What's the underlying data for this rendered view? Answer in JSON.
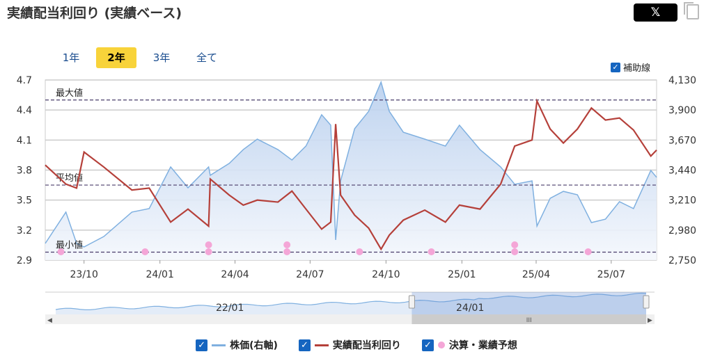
{
  "title": "実績配当利回り (実績ベース)",
  "share": {
    "x_label": "𝕏",
    "icons": [
      "x-share-icon",
      "copy-icon"
    ]
  },
  "ranges": [
    {
      "label": "1年",
      "active": false
    },
    {
      "label": "2年",
      "active": true
    },
    {
      "label": "3年",
      "active": false
    },
    {
      "label": "全て",
      "active": false
    }
  ],
  "aux_line": {
    "label": "補助線",
    "checked": true
  },
  "colors": {
    "price": "#7fb0e0",
    "yield": "#b5403a",
    "event": "#f4a6d7",
    "ref": "#4a3c6a",
    "accent": "#f8d33a"
  },
  "chart_data": {
    "type": "line",
    "left_axis": {
      "ylim": [
        2.9,
        4.7
      ],
      "ticks": [
        "2.9",
        "3.2",
        "3.5",
        "3.8",
        "4.1",
        "4.4",
        "4.7"
      ]
    },
    "right_axis": {
      "ylim": [
        2750,
        4130
      ],
      "ticks": [
        "2,750",
        "2,980",
        "3,210",
        "3,440",
        "3,670",
        "3,900",
        "4,130"
      ]
    },
    "x_ticks": [
      {
        "label": "23/10",
        "date": "2023-10-01"
      },
      {
        "label": "24/01",
        "date": "2024-01-01"
      },
      {
        "label": "24/04",
        "date": "2024-04-01"
      },
      {
        "label": "24/07",
        "date": "2024-07-01"
      },
      {
        "label": "24/10",
        "date": "2024-10-01"
      },
      {
        "label": "25/01",
        "date": "2025-01-01"
      },
      {
        "label": "25/04",
        "date": "2025-04-01"
      },
      {
        "label": "25/07",
        "date": "2025-07-01"
      }
    ],
    "xlim": [
      "2023-08-15",
      "2025-08-25"
    ],
    "reference_lines": [
      {
        "label": "最大値",
        "value": 4.5
      },
      {
        "label": "平均値",
        "value": 3.65
      },
      {
        "label": "最小値",
        "value": 2.98
      }
    ],
    "dates": [
      "2023-08-15",
      "2023-09-09",
      "2023-09-22",
      "2023-10-01",
      "2023-10-25",
      "2023-11-28",
      "2023-12-19",
      "2024-01-14",
      "2024-02-04",
      "2024-02-29",
      "2024-03-02",
      "2024-03-25",
      "2024-04-11",
      "2024-04-28",
      "2024-05-23",
      "2024-06-09",
      "2024-06-26",
      "2024-07-15",
      "2024-07-26",
      "2024-08-01",
      "2024-08-07",
      "2024-08-24",
      "2024-09-10",
      "2024-09-25",
      "2024-10-05",
      "2024-10-22",
      "2024-11-17",
      "2024-12-12",
      "2024-12-29",
      "2025-01-23",
      "2025-02-17",
      "2025-03-06",
      "2025-03-27",
      "2025-04-02",
      "2025-04-18",
      "2025-05-04",
      "2025-05-21",
      "2025-06-07",
      "2025-06-24",
      "2025-07-11",
      "2025-07-28",
      "2025-08-18",
      "2025-08-25"
    ],
    "series": [
      {
        "name": "株価(右軸)",
        "axis": "right",
        "values": [
          2878,
          3118,
          2878,
          2851,
          2931,
          3118,
          3145,
          3464,
          3304,
          3464,
          3400,
          3491,
          3597,
          3677,
          3597,
          3517,
          3624,
          3864,
          3784,
          2905,
          3357,
          3757,
          3890,
          4114,
          3890,
          3730,
          3677,
          3624,
          3784,
          3597,
          3464,
          3331,
          3357,
          3011,
          3224,
          3277,
          3251,
          3038,
          3064,
          3198,
          3145,
          3437,
          3384
        ]
      },
      {
        "name": "実績配当利回り",
        "axis": "left",
        "values": [
          3.85,
          3.66,
          3.62,
          3.98,
          3.83,
          3.6,
          3.62,
          3.28,
          3.41,
          3.24,
          3.71,
          3.55,
          3.45,
          3.5,
          3.48,
          3.59,
          3.41,
          3.21,
          3.28,
          4.26,
          3.55,
          3.35,
          3.22,
          3.01,
          3.15,
          3.3,
          3.4,
          3.28,
          3.45,
          3.41,
          3.66,
          4.04,
          4.1,
          4.49,
          4.21,
          4.07,
          4.21,
          4.42,
          4.3,
          4.32,
          4.2,
          3.94,
          4.0
        ]
      }
    ],
    "events": {
      "name": "決算・業績予想",
      "points": [
        {
          "date": "2023-09-03",
          "count": 1
        },
        {
          "date": "2023-12-14",
          "count": 1
        },
        {
          "date": "2024-02-29",
          "count": 2
        },
        {
          "date": "2024-06-03",
          "count": 2
        },
        {
          "date": "2024-08-30",
          "count": 1
        },
        {
          "date": "2024-11-25",
          "count": 1
        },
        {
          "date": "2025-03-06",
          "count": 2
        },
        {
          "date": "2025-06-03",
          "count": 1
        }
      ]
    }
  },
  "navigator": {
    "labels": [
      "22/01",
      "24/01"
    ],
    "selection": [
      0.61,
      1.0
    ]
  },
  "legend": [
    {
      "label": "株価(右軸)",
      "checked": true
    },
    {
      "label": "実績配当利回り",
      "checked": true
    },
    {
      "label": "決算・業績予想",
      "checked": true
    }
  ]
}
